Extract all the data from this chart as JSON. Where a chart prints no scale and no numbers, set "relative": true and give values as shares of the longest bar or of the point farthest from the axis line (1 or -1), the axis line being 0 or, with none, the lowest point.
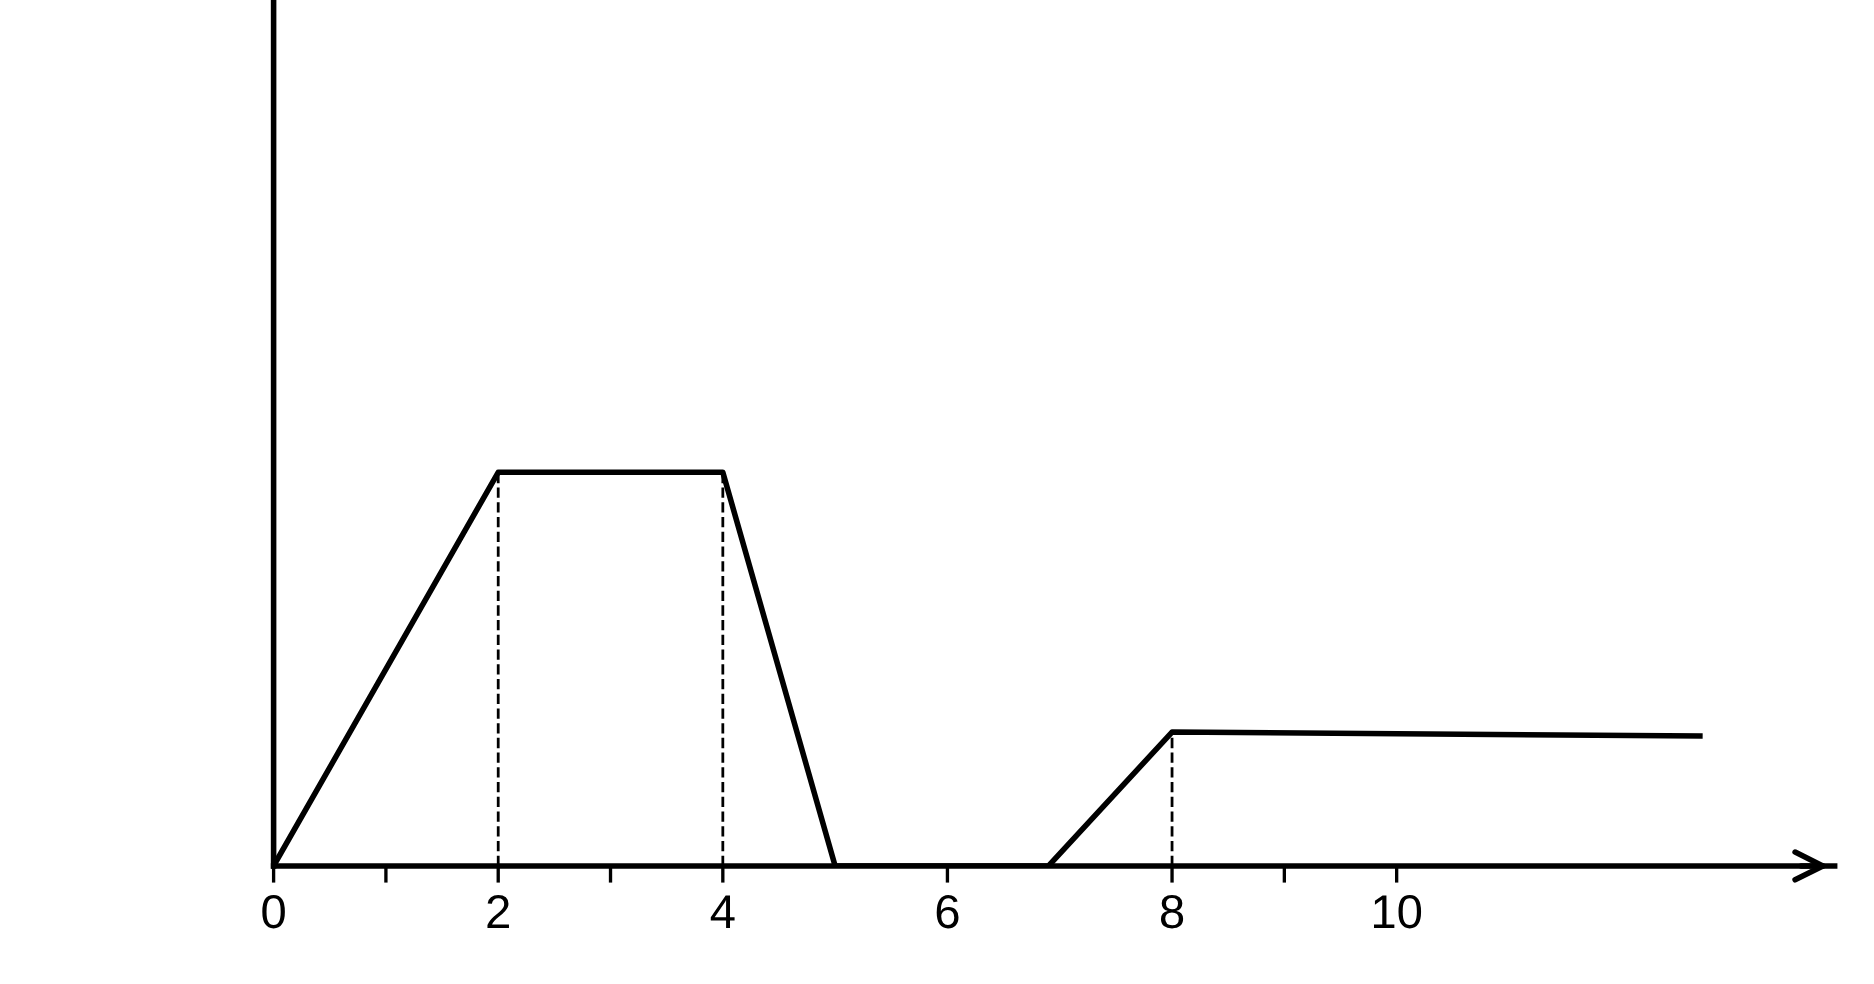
{
  "chart_data": {
    "type": "line",
    "relative": true,
    "tick_labels": "x",
    "grid": false,
    "legend": false,
    "marker": "none",
    "xlim": [
      0,
      13.9
    ],
    "xticks": [
      0,
      {
        "value": 1,
        "label": null
      },
      2,
      {
        "value": 3,
        "label": null
      },
      4,
      6,
      8,
      {
        "value": 9,
        "label": null
      },
      10
    ],
    "series": [
      {
        "color": "#000000",
        "line_style": "solid",
        "x": [
          0,
          2,
          4,
          5,
          6.9,
          8,
          12.7
        ],
        "values": [
          0,
          1,
          1,
          0,
          0,
          0.34,
          0.33
        ]
      }
    ],
    "ref_lines": [
      {
        "axis": "x",
        "value": 2,
        "color": "#000000",
        "line_style": "dashed"
      },
      {
        "axis": "x",
        "value": 4,
        "color": "#000000",
        "line_style": "dashed"
      },
      {
        "axis": "x",
        "value": 8,
        "color": "#000000",
        "line_style": "dashed"
      }
    ]
  }
}
